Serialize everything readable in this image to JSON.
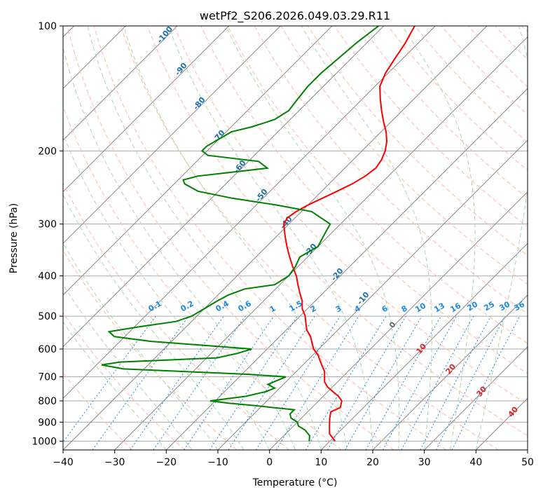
{
  "chart_data": {
    "type": "line",
    "title": "wetPf2_S206.2026.049.03.29.R11",
    "xlabel": "Temperature (°C)",
    "ylabel": "Pressure (hPa)",
    "xlim": [
      -40,
      50
    ],
    "ylim": [
      1050,
      100
    ],
    "y_scale": "log",
    "skew_deg": 45,
    "grid": true,
    "x_ticks": [
      -40,
      -30,
      -20,
      -10,
      0,
      10,
      20,
      30,
      40,
      50
    ],
    "y_ticks": [
      1000,
      900,
      800,
      700,
      600,
      500,
      400,
      300,
      200,
      100
    ],
    "series": [
      {
        "role": "temperature",
        "color": "#ff0000",
        "pressure": [
          1000,
          960,
          920,
          880,
          850,
          830,
          800,
          780,
          760,
          740,
          720,
          700,
          680,
          660,
          640,
          620,
          600,
          580,
          560,
          540,
          520,
          500,
          480,
          460,
          440,
          420,
          400,
          380,
          360,
          340,
          320,
          300,
          290,
          280,
          270,
          260,
          250,
          240,
          230,
          220,
          210,
          200,
          190,
          180,
          170,
          160,
          150,
          140,
          130,
          120,
          110,
          100
        ],
        "temp": [
          11,
          8.5,
          7,
          5.5,
          4.5,
          5.5,
          4.5,
          3,
          1,
          -1,
          -2.5,
          -3.5,
          -4.5,
          -6,
          -7.5,
          -9,
          -11,
          -12.5,
          -14,
          -16,
          -17.5,
          -19,
          -21,
          -22.5,
          -24.5,
          -26.5,
          -28.5,
          -31,
          -33.5,
          -36,
          -38.5,
          -41,
          -41.5,
          -41,
          -40,
          -38.5,
          -37,
          -35.5,
          -34.5,
          -34,
          -34.5,
          -35.5,
          -37,
          -39,
          -41.5,
          -44,
          -46.5,
          -49,
          -50.5,
          -51.5,
          -52.5,
          -54
        ]
      },
      {
        "role": "dewpoint",
        "color": "#008000",
        "pressure": [
          1000,
          970,
          940,
          920,
          900,
          880,
          860,
          840,
          820,
          810,
          800,
          780,
          760,
          745,
          730,
          715,
          700,
          690,
          670,
          655,
          645,
          630,
          615,
          600,
          590,
          575,
          560,
          545,
          530,
          515,
          500,
          480,
          460,
          445,
          430,
          420,
          400,
          380,
          360,
          340,
          320,
          300,
          280,
          270,
          260,
          250,
          240,
          235,
          230,
          225,
          220,
          212,
          205,
          200,
          195,
          180,
          175,
          168,
          160,
          150,
          140,
          130,
          120,
          110,
          100
        ],
        "dewpoint": [
          6,
          5,
          3,
          1,
          0,
          -2,
          -3,
          -3,
          -12,
          -17,
          -21,
          -15,
          -12,
          -11,
          -13,
          -12,
          -11,
          -19,
          -44,
          -49,
          -46,
          -28,
          -25,
          -23,
          -31,
          -44,
          -52,
          -54,
          -49,
          -43,
          -41,
          -40,
          -39,
          -38,
          -36,
          -31,
          -30,
          -30.5,
          -31.5,
          -30,
          -31,
          -32,
          -38,
          -46,
          -56,
          -64,
          -68,
          -69,
          -67,
          -61,
          -55,
          -58,
          -69,
          -71,
          -71,
          -69,
          -66,
          -63,
          -62,
          -62.5,
          -63,
          -63,
          -62.5,
          -62,
          -61
        ]
      }
    ],
    "dry_adiabats_label_values": [
      "-100",
      "-90",
      "-80",
      "-70",
      "-60",
      "-50",
      "-40",
      "-30",
      "-20",
      "-10"
    ],
    "moist_adiabat_label_values": [
      "0",
      "10",
      "20",
      "30",
      "40"
    ],
    "mixing_ratio_label_values": [
      "0.1",
      "0.2",
      "0.4",
      "0.6",
      "1",
      "1.5",
      "2",
      "3",
      "4",
      "6",
      "8",
      "10",
      "13",
      "16",
      "20",
      "25",
      "30",
      "36"
    ],
    "colors": {
      "temperature": "#ff0000",
      "dewpoint": "#008000",
      "isotherm": "#888888",
      "isobar_grid": "#aaaaaa",
      "dry_adiabat": "#ffb8a0",
      "moist_adiabat": "#a8d8a8",
      "mixing_ratio": "#1e88e5",
      "dry_label": "#1f6fb0",
      "moist_label": "#d62728",
      "zero_label": "#666666"
    }
  }
}
